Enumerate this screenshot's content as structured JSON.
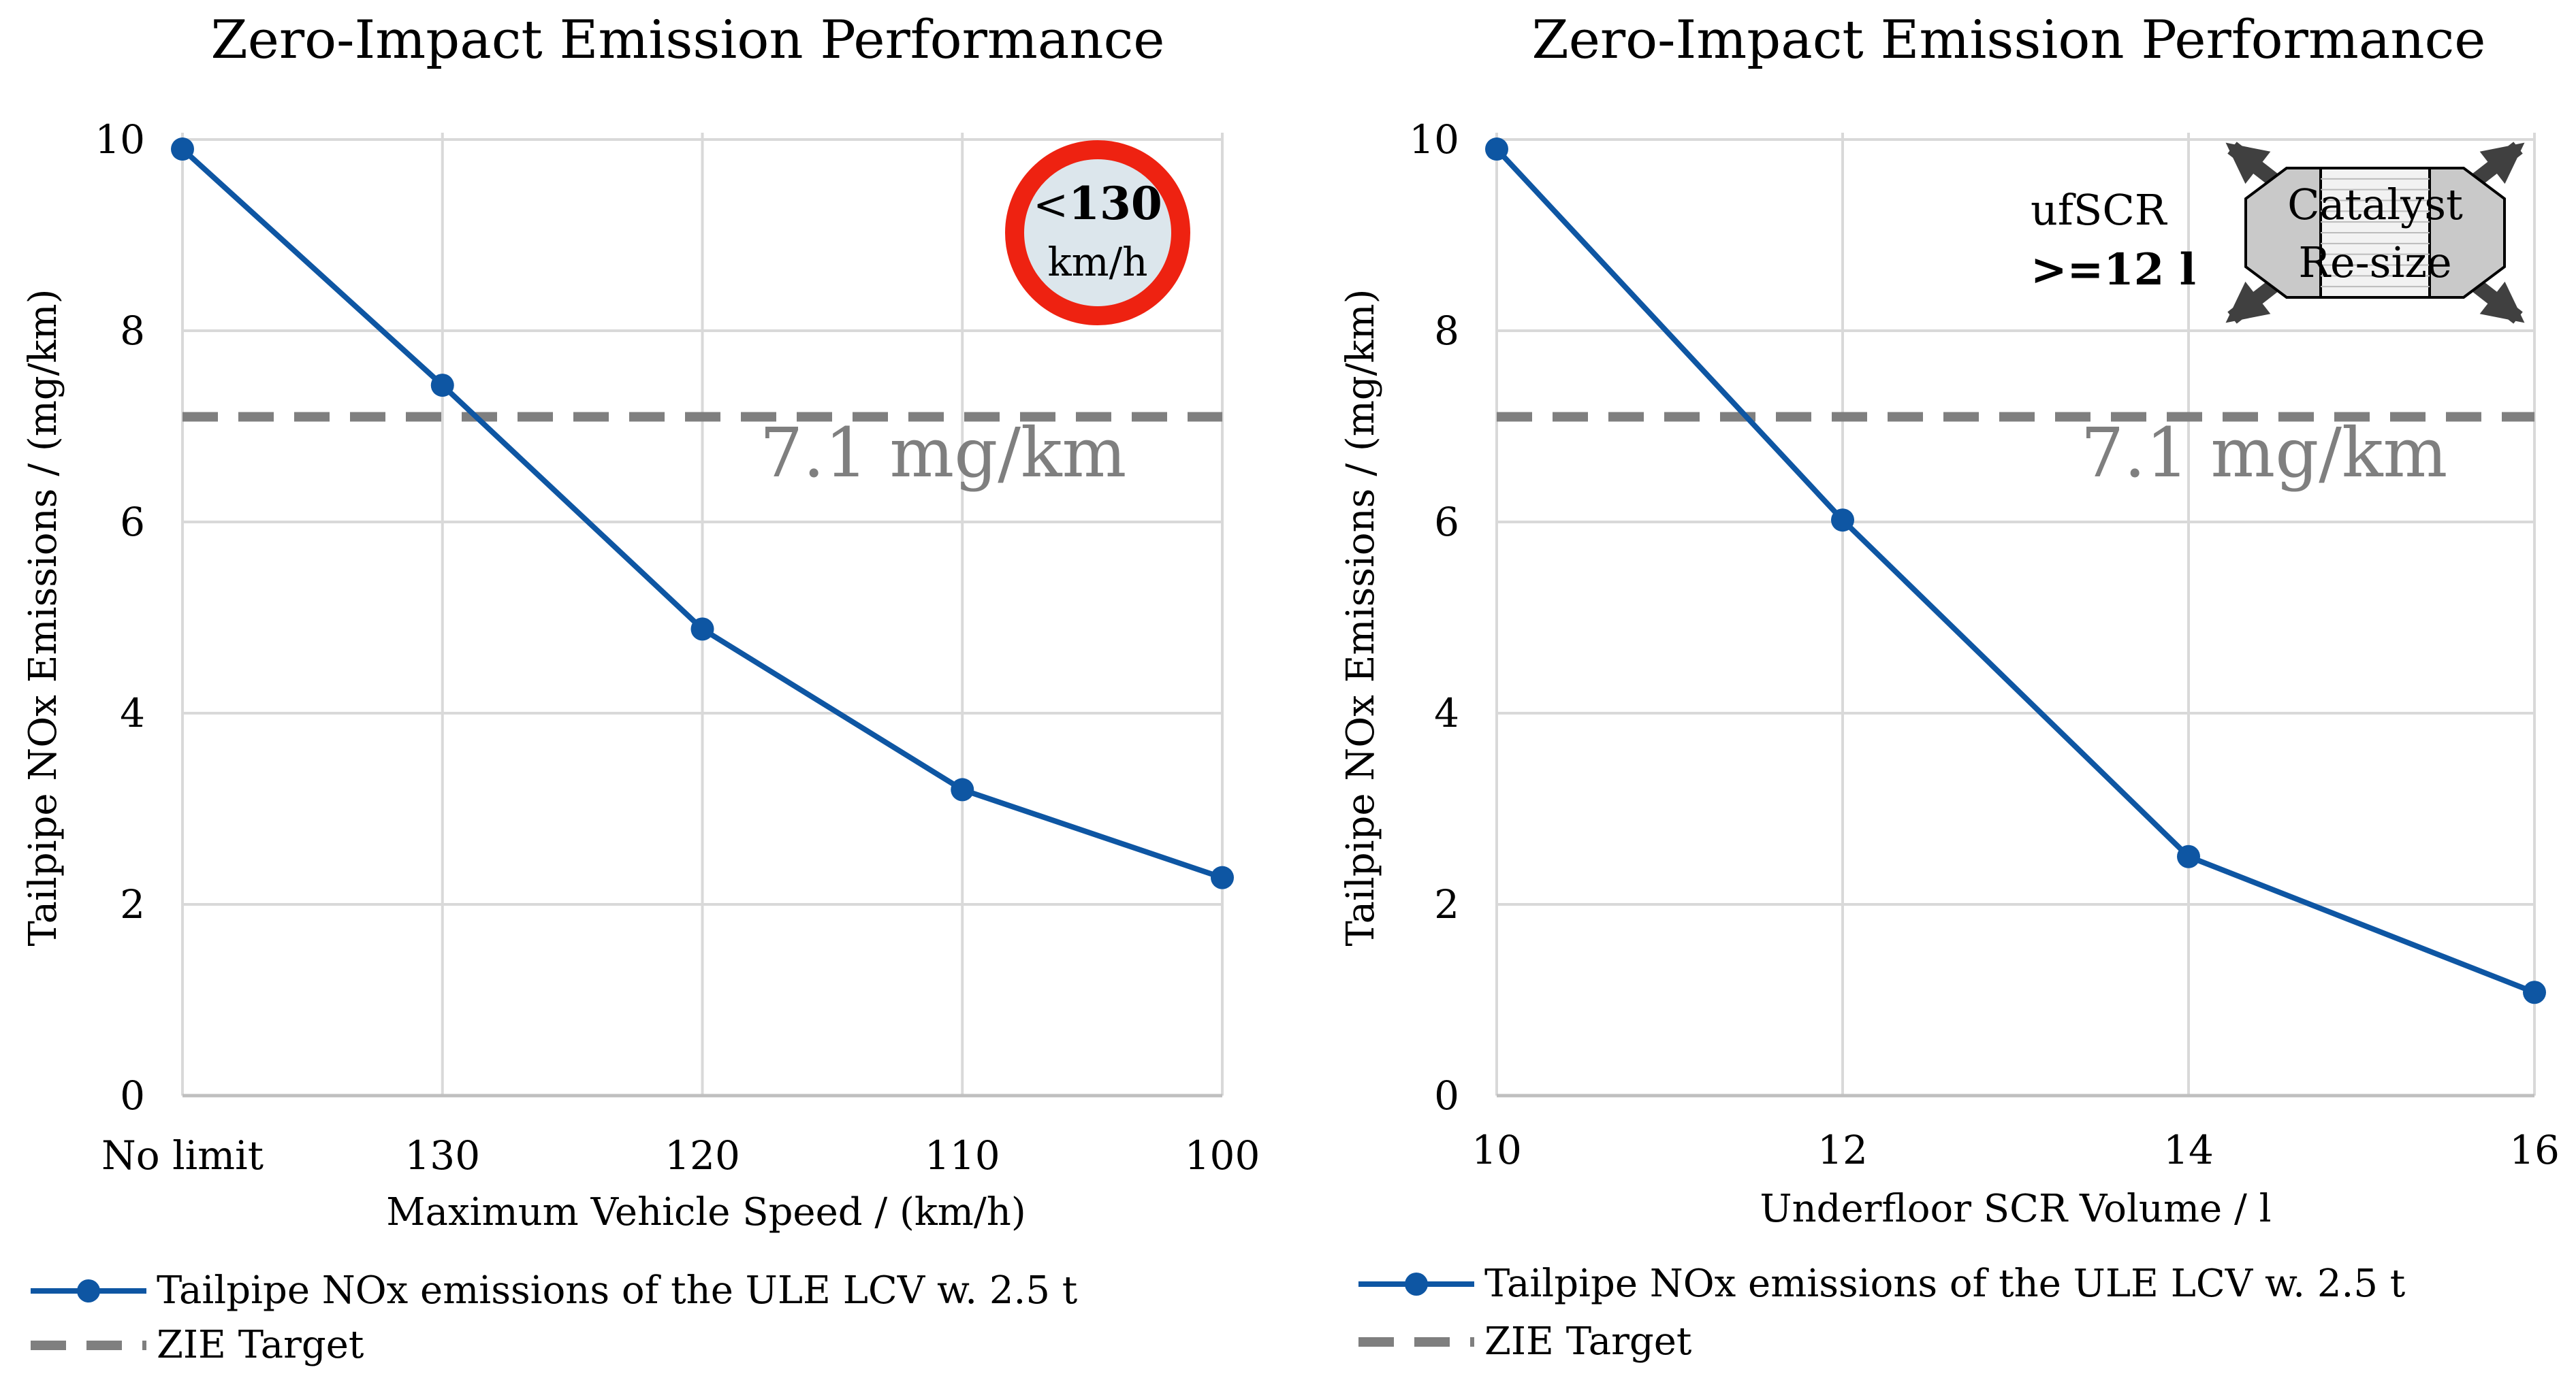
{
  "colors": {
    "series": "#0E56A3",
    "target": "#7F7F7F",
    "grid": "#D9D9D9",
    "annotation": "#7F7F7F",
    "sign_ring": "#EE2211",
    "sign_fill": "#DCE6EC",
    "catalyst_fill": "#C9C9C9",
    "arrow": "#404040"
  },
  "chart_data": [
    {
      "type": "line",
      "title": "Zero-Impact Emission Performance",
      "xlabel": "Maximum Vehicle Speed / (km/h)",
      "ylabel": "Tailpipe NOx Emissions / (mg/km)",
      "categories": [
        "No limit",
        "130",
        "120",
        "110",
        "100"
      ],
      "ylim": [
        0,
        10
      ],
      "yticks": [
        "0",
        "2",
        "4",
        "6",
        "8",
        "10"
      ],
      "grid": true,
      "series": [
        {
          "name": "Tailpipe NOx emissions of the ULE LCV w. 2.5 t",
          "values": [
            9.9,
            7.43,
            4.88,
            3.2,
            2.28
          ]
        }
      ],
      "target": {
        "name": "ZIE Target",
        "value": 7.1,
        "label": "7.1 mg/km"
      },
      "badge": {
        "prefix": "<",
        "number": "130",
        "unit": "km/h"
      },
      "legend_position": "bottom-left"
    },
    {
      "type": "line",
      "title": "Zero-Impact Emission Performance",
      "xlabel": "Underfloor SCR Volume / l",
      "ylabel": "Tailpipe NOx Emissions / (mg/km)",
      "x": [
        10,
        12,
        14,
        16
      ],
      "xticks": [
        "10",
        "12",
        "14",
        "16"
      ],
      "xlim": [
        10,
        16
      ],
      "ylim": [
        0,
        10
      ],
      "yticks": [
        "0",
        "2",
        "4",
        "6",
        "8",
        "10"
      ],
      "grid": true,
      "series": [
        {
          "name": "Tailpipe NOx emissions of the ULE LCV w. 2.5 t",
          "values": [
            9.9,
            6.02,
            2.5,
            1.08
          ]
        }
      ],
      "target": {
        "name": "ZIE Target",
        "value": 7.1,
        "label": "7.1 mg/km"
      },
      "note": {
        "line1": "ufSCR",
        "line2": ">=12 l"
      },
      "catalyst": {
        "line1": "Catalyst",
        "line2": "Re-size"
      },
      "legend_position": "bottom-left"
    }
  ]
}
